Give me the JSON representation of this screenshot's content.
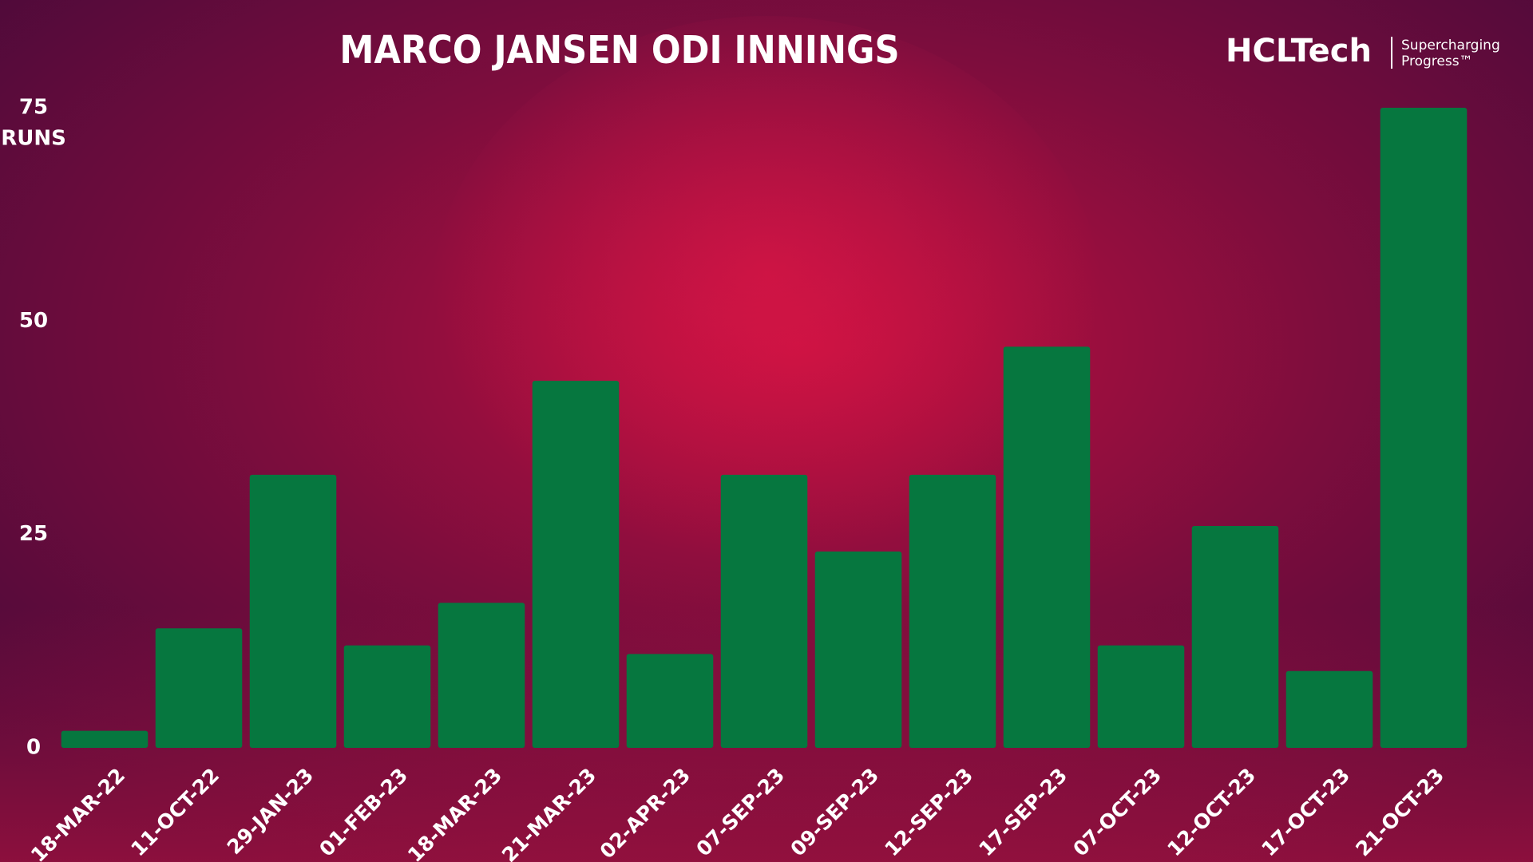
{
  "chart_data": {
    "type": "bar",
    "title": "MARCO JANSEN ODI INNINGS",
    "y_label": "RUNS",
    "logo": {
      "brand": "HCLTech",
      "tagline_1": "Supercharging",
      "tagline_2": "Progress™"
    },
    "categories": [
      "18-MAR-22",
      "11-OCT-22",
      "29-JAN-23",
      "01-FEB-23",
      "18-MAR-23",
      "21-MAR-23",
      "02-APR-23",
      "07-SEP-23",
      "09-SEP-23",
      "12-SEP-23",
      "17-SEP-23",
      "07-OCT-23",
      "12-OCT-23",
      "17-OCT-23",
      "21-OCT-23"
    ],
    "values": [
      2,
      14,
      32,
      12,
      17,
      43,
      11,
      32,
      23,
      32,
      47,
      12,
      26,
      9,
      75
    ],
    "color": "#06773f",
    "ylim": [
      0,
      75
    ],
    "yticks": [
      0,
      25,
      50,
      75
    ],
    "grid": false
  }
}
